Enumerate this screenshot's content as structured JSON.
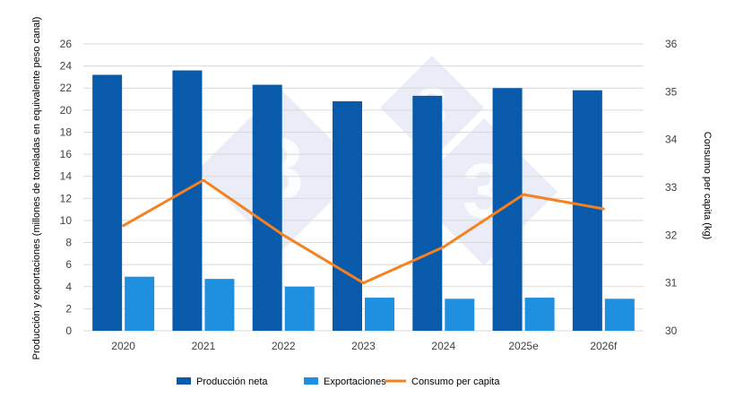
{
  "chart_data": {
    "type": "bar",
    "categories": [
      "2020",
      "2021",
      "2022",
      "2023",
      "2024",
      "2025e",
      "2026f"
    ],
    "series": [
      {
        "name": "Producción neta",
        "kind": "bar",
        "axis": "left",
        "color": "#0a5aab",
        "values": [
          23.2,
          23.6,
          22.3,
          20.8,
          21.3,
          22.0,
          21.8
        ]
      },
      {
        "name": "Exportaciones",
        "kind": "bar",
        "axis": "left",
        "color": "#1f8fe0",
        "values": [
          4.9,
          4.7,
          4.0,
          3.0,
          2.9,
          3.0,
          2.9
        ]
      },
      {
        "name": "Consumo per capita",
        "kind": "line",
        "axis": "right",
        "color": "#f58220",
        "values": [
          32.2,
          33.15,
          32.0,
          31.0,
          31.75,
          32.85,
          32.55
        ]
      }
    ],
    "ylabel": "Producción y exportaciones (millones de toneladas en equivalente peso canal)",
    "y2label": "Consumo per capita (kg)",
    "ylim": [
      0,
      26
    ],
    "y2lim": [
      30,
      36
    ],
    "yticks": [
      "0",
      "2",
      "4",
      "6",
      "8",
      "10",
      "12",
      "14",
      "16",
      "18",
      "20",
      "22",
      "24",
      "26"
    ],
    "y2ticks": [
      "30",
      "31",
      "32",
      "33",
      "34",
      "35",
      "36"
    ],
    "grid": true,
    "legend_position": "bottom"
  }
}
